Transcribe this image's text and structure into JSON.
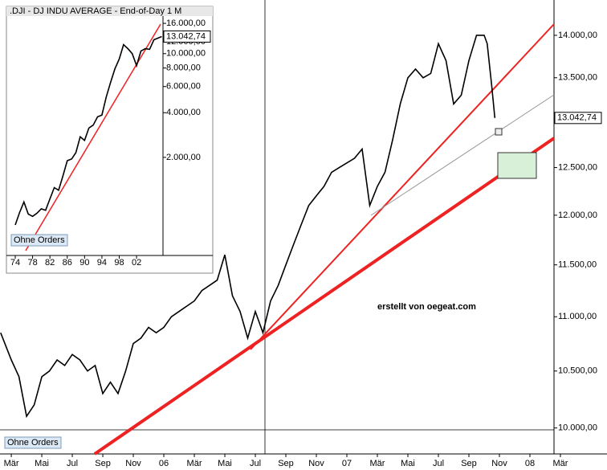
{
  "chart_data": [
    {
      "type": "line",
      "log_scale": true,
      "color": "#000000",
      "annotation": "erstellt von oegeat.com",
      "orders_label": "Ohne Orders",
      "last_value": {
        "value": 13042.74,
        "label": "13.042,74"
      },
      "xlim": [
        -0.74,
        35.58
      ],
      "ylim": [
        9780,
        14430
      ],
      "xticks": [
        {
          "value": 0,
          "label": "Mär"
        },
        {
          "value": 2,
          "label": "Mai"
        },
        {
          "value": 4,
          "label": "Jul"
        },
        {
          "value": 6,
          "label": "Sep"
        },
        {
          "value": 8,
          "label": "Nov"
        },
        {
          "value": 10,
          "label": "06"
        },
        {
          "value": 12,
          "label": "Mär"
        },
        {
          "value": 14,
          "label": "Mai"
        },
        {
          "value": 16,
          "label": "Jul"
        },
        {
          "value": 18,
          "label": "Sep"
        },
        {
          "value": 20,
          "label": "Nov"
        },
        {
          "value": 22,
          "label": "07"
        },
        {
          "value": 24,
          "label": "Mär"
        },
        {
          "value": 26,
          "label": "Mai"
        },
        {
          "value": 28,
          "label": "Jul"
        },
        {
          "value": 30,
          "label": "Sep"
        },
        {
          "value": 32,
          "label": "Nov"
        },
        {
          "value": 34,
          "label": "08"
        },
        {
          "value": 36,
          "label": "Mär"
        }
      ],
      "yticks": [
        {
          "value": 10000,
          "label": "10.000,00"
        },
        {
          "value": 10500,
          "label": "10.500,00"
        },
        {
          "value": 11000,
          "label": "11.000,00"
        },
        {
          "value": 11500,
          "label": "11.500,00"
        },
        {
          "value": 12000,
          "label": "12.000,00"
        },
        {
          "value": 12500,
          "label": "12.500,00"
        },
        {
          "value": 13500,
          "label": "13.500,00"
        },
        {
          "value": 14000,
          "label": "14.000,00"
        }
      ],
      "x": [
        -0.7,
        0,
        0.5,
        1,
        1.5,
        2,
        2.5,
        3,
        3.5,
        4,
        4.5,
        5,
        5.5,
        6,
        6.5,
        7,
        7.5,
        8,
        8.5,
        9,
        9.5,
        10,
        10.5,
        11,
        11.5,
        12,
        12.5,
        13,
        13.5,
        14,
        14.5,
        15,
        15.5,
        16,
        16.5,
        17,
        17.5,
        18,
        18.5,
        19,
        19.5,
        20,
        20.5,
        21,
        21.5,
        22,
        22.5,
        23,
        23.5,
        24,
        24.5,
        25,
        25.5,
        26,
        26.5,
        27,
        27.5,
        28,
        28.5,
        29,
        29.5,
        30,
        30.5,
        31,
        31.2,
        31.5,
        31.7
      ],
      "values": [
        10850,
        10600,
        10450,
        10100,
        10200,
        10450,
        10500,
        10600,
        10550,
        10650,
        10600,
        10500,
        10550,
        10300,
        10400,
        10300,
        10500,
        10750,
        10800,
        10900,
        10850,
        10900,
        11000,
        11050,
        11100,
        11150,
        11250,
        11300,
        11350,
        11600,
        11200,
        11050,
        10800,
        11050,
        10850,
        11150,
        11300,
        11500,
        11700,
        11900,
        12100,
        12200,
        12300,
        12450,
        12500,
        12550,
        12600,
        12700,
        12100,
        12300,
        12450,
        12800,
        13200,
        13500,
        13600,
        13500,
        13550,
        13900,
        13700,
        13200,
        13300,
        13700,
        14000,
        14000,
        13900,
        13400,
        13042.74
      ]
    },
    {
      "type": "line",
      "log_scale": true,
      "color": "#000000",
      "title": ".DJI - DJ INDU AVERAGE - End-of-Day 1 M",
      "orders_label": "Ohne Orders",
      "last_value": {
        "value": 13042.74,
        "label": "13.042,74"
      },
      "xlim": [
        1972.33,
        2008.1
      ],
      "ylim": [
        436,
        17920
      ],
      "xticks": [
        {
          "value": 1974,
          "label": "74"
        },
        {
          "value": 1978,
          "label": "78"
        },
        {
          "value": 1982,
          "label": "82"
        },
        {
          "value": 1986,
          "label": "86"
        },
        {
          "value": 1990,
          "label": "90"
        },
        {
          "value": 1994,
          "label": "94"
        },
        {
          "value": 1998,
          "label": "98"
        },
        {
          "value": 2002,
          "label": "02"
        }
      ],
      "yticks": [
        {
          "value": 2000,
          "label": "2.000,00"
        },
        {
          "value": 4000,
          "label": "4.000,00"
        },
        {
          "value": 6000,
          "label": "6.000,00"
        },
        {
          "value": 8000,
          "label": "8.000,00"
        },
        {
          "value": 10000,
          "label": "10.000,00"
        },
        {
          "value": 12000,
          "label": "12.000,00"
        },
        {
          "value": 16000,
          "label": "16.000,00"
        }
      ],
      "x": [
        1974,
        1975,
        1976,
        1977,
        1978,
        1979,
        1980,
        1981,
        1982,
        1983,
        1984,
        1985,
        1986,
        1987,
        1988,
        1989,
        1990,
        1991,
        1992,
        1993,
        1994,
        1995,
        1996,
        1997,
        1998,
        1999,
        2000,
        2001,
        2002,
        2003,
        2004,
        2005,
        2006,
        2007.8
      ],
      "values": [
        700,
        850,
        1000,
        830,
        800,
        840,
        900,
        880,
        1050,
        1250,
        1200,
        1500,
        1900,
        1950,
        2150,
        2750,
        2600,
        3150,
        3300,
        3750,
        3850,
        5100,
        6400,
        7900,
        9200,
        11500,
        10800,
        10000,
        8300,
        10400,
        10800,
        10700,
        12400,
        13042.74
      ]
    }
  ]
}
